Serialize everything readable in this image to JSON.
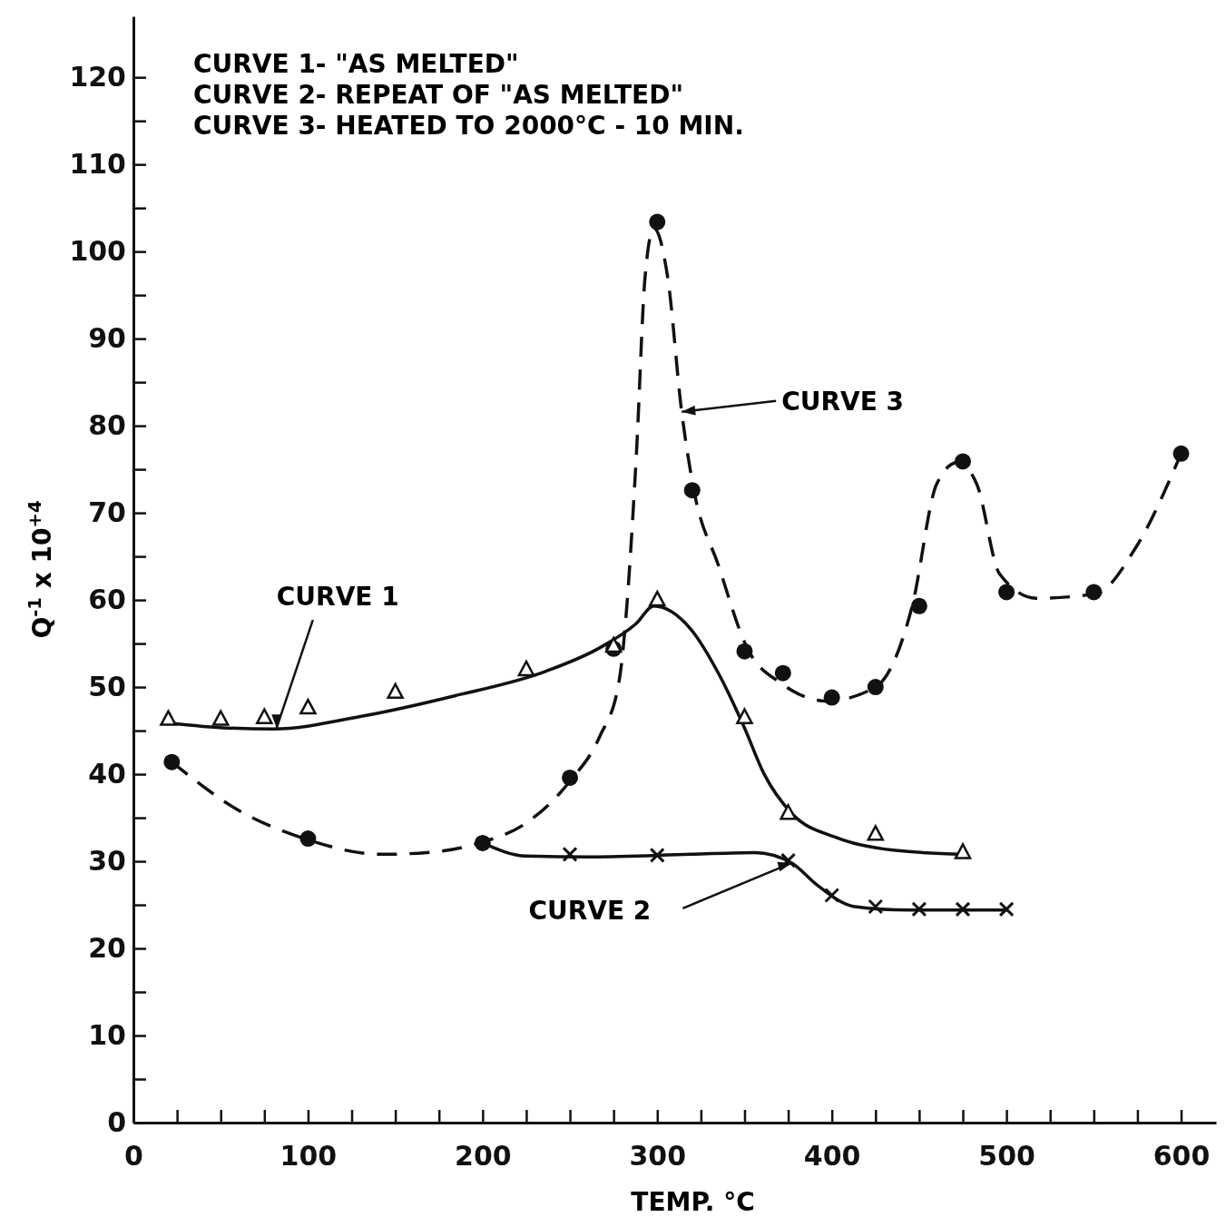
{
  "chart_data": {
    "type": "scatter",
    "xlabel": "TEMP. °C",
    "ylabel": "Q$^{-1}$ x 10$^{+4}$",
    "xlim": [
      0,
      620
    ],
    "ylim": [
      0,
      127
    ],
    "xticks": [
      0,
      {
        "value": 25,
        "label": null
      },
      {
        "value": 50,
        "label": null
      },
      {
        "value": 75,
        "label": null
      },
      100,
      {
        "value": 125,
        "label": null
      },
      {
        "value": 150,
        "label": null
      },
      {
        "value": 175,
        "label": null
      },
      200,
      {
        "value": 225,
        "label": null
      },
      {
        "value": 250,
        "label": null
      },
      {
        "value": 275,
        "label": null
      },
      300,
      {
        "value": 325,
        "label": null
      },
      {
        "value": 350,
        "label": null
      },
      {
        "value": 375,
        "label": null
      },
      400,
      {
        "value": 425,
        "label": null
      },
      {
        "value": 450,
        "label": null
      },
      {
        "value": 475,
        "label": null
      },
      500,
      {
        "value": 525,
        "label": null
      },
      {
        "value": 550,
        "label": null
      },
      {
        "value": 575,
        "label": null
      },
      600
    ],
    "yticks": [
      0,
      {
        "value": 5,
        "label": null
      },
      10,
      {
        "value": 15,
        "label": null
      },
      20,
      {
        "value": 25,
        "label": null
      },
      30,
      {
        "value": 35,
        "label": null
      },
      40,
      {
        "value": 45,
        "label": null
      },
      50,
      {
        "value": 55,
        "label": null
      },
      60,
      {
        "value": 65,
        "label": null
      },
      70,
      {
        "value": 75,
        "label": null
      },
      80,
      {
        "value": 85,
        "label": null
      },
      90,
      {
        "value": 95,
        "label": null
      },
      100,
      {
        "value": 105,
        "label": null
      },
      110,
      {
        "value": 115,
        "label": null
      },
      120
    ],
    "grid": false,
    "series": [
      {
        "marker": "triangle",
        "color": "#111111",
        "x": [
          20,
          50,
          75,
          100,
          150,
          225,
          275,
          300,
          350,
          375,
          425,
          475
        ],
        "values": [
          46.3,
          46.3,
          46.5,
          47.6,
          49.4,
          52,
          54.7,
          60,
          46.5,
          35.5,
          33.1,
          31
        ]
      },
      {
        "type": "line",
        "line_style": "solid",
        "color": "#111111",
        "x": [
          20,
          54,
          80,
          132,
          184,
          236,
          267,
          288,
          298,
          319,
          335,
          350,
          361,
          377,
          403,
          434,
          475
        ],
        "values": [
          45.9,
          45.3,
          45.2,
          46.7,
          49,
          51.8,
          54.5,
          57.3,
          59.3,
          56.7,
          51.6,
          45.3,
          40.1,
          35.5,
          32.7,
          31.3,
          30.8
        ]
      },
      {
        "marker": "cross",
        "color": "#111111",
        "x": [
          250,
          300,
          375,
          400,
          425,
          450,
          475,
          500
        ],
        "values": [
          30.8,
          30.7,
          30.1,
          26.1,
          24.8,
          24.5,
          24.5,
          24.5
        ]
      },
      {
        "type": "line",
        "line_style": "solid",
        "color": "#111111",
        "x": [
          200,
          225,
          262,
          319,
          356,
          377,
          392,
          413,
          444,
          501
        ],
        "values": [
          32.1,
          30.6,
          30.5,
          30.8,
          31,
          29.8,
          27.2,
          24.8,
          24.4,
          24.4
        ]
      },
      {
        "marker": "circle",
        "color": "#111111",
        "x": [
          22,
          100,
          200,
          250,
          275,
          300,
          320,
          350,
          372,
          400,
          425,
          450,
          475,
          500,
          550,
          600
        ],
        "values": [
          41.4,
          32.6,
          32.1,
          39.6,
          54.4,
          103.4,
          72.6,
          54.1,
          51.6,
          48.8,
          50,
          59.3,
          75.9,
          60.9,
          60.9,
          76.8
        ]
      },
      {
        "type": "line",
        "line_style": "dashed",
        "color": "#111111",
        "x": [
          22,
          59,
          98,
          142,
          168,
          198,
          225,
          250,
          267,
          278,
          288,
          293,
          298,
          306,
          314,
          321,
          335,
          351,
          372,
          397,
          425,
          446,
          460,
          472,
          483,
          496,
          517,
          551,
          574,
          600
        ],
        "values": [
          41.4,
          36,
          32.6,
          30.8,
          31,
          32.1,
          34.4,
          39.2,
          44.3,
          50.5,
          76.5,
          97,
          102.7,
          97,
          81.6,
          72.6,
          64,
          54.7,
          50.3,
          48.4,
          50,
          59.3,
          73.3,
          75.8,
          73.3,
          63,
          60.2,
          60.7,
          66,
          76.8
        ]
      }
    ],
    "annotations": [
      "CURVE 1- \"AS MELTED\"",
      "CURVE 2- REPEAT OF \"AS MELTED\"",
      "CURVE 3- HEATED TO 2000°C - 10 MIN.",
      {
        "text": "CURVE 1",
        "x": 82,
        "y": 45.3
      },
      {
        "text": "CURVE 2",
        "x": 377,
        "y": 29.8
      },
      {
        "text": "CURVE 3",
        "x": 314,
        "y": 81.6
      }
    ]
  }
}
